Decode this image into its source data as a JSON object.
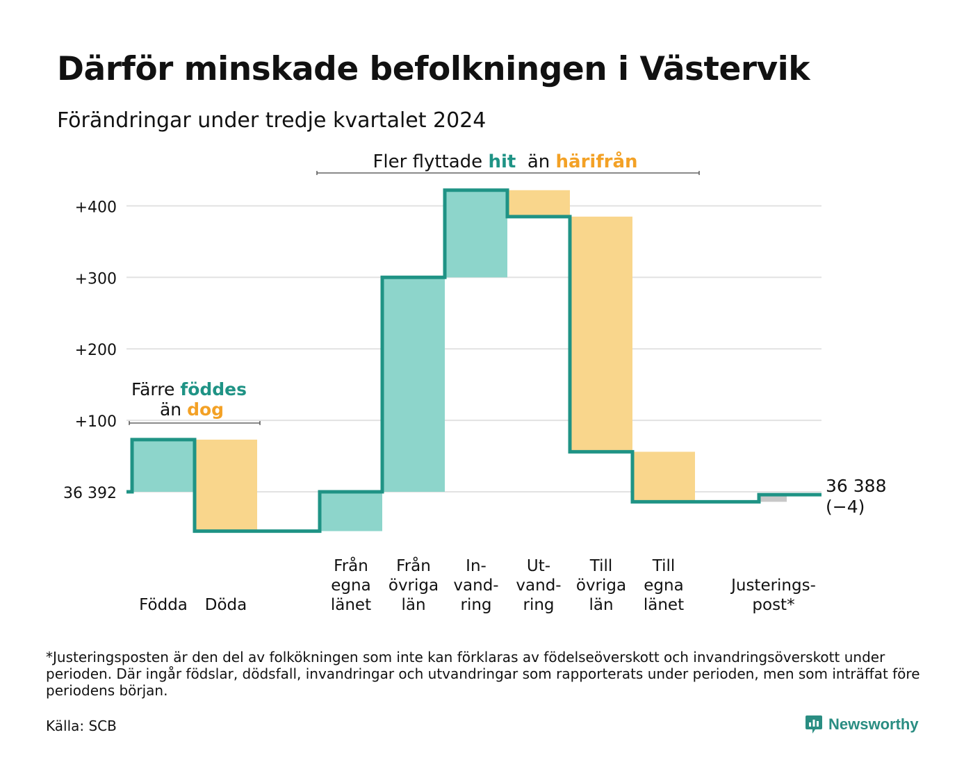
{
  "title": "Därför minskade befolkningen i Västervik",
  "subtitle": "Förändringar under tredje kvartalet 2024",
  "footnote": "*Justeringsposten är den del av folkökningen som inte kan förklaras av födelseöverskott och invandringsöverskott under perioden. Där ingår födslar, dödsfall, invandringar och utvandringar som rapporterats under perioden, men som inträffat före periodens början.",
  "source": "Källa: SCB",
  "brand": "Newsworthy",
  "colors": {
    "teal_line": "#1f9385",
    "teal_fill": "#8dd5cb",
    "orange_fill": "#f9d68c",
    "orange_text": "#f3a125",
    "gray_fill": "#c8c8c8",
    "grid": "#e2e2e2"
  },
  "chart_data": {
    "type": "waterfall",
    "start_label": "36 392",
    "end_label_value": "36 388",
    "end_label_change": "(−4)",
    "yticks": [
      "+100",
      "+200",
      "+300",
      "+400"
    ],
    "ylim": [
      -90,
      450
    ],
    "steps": [
      {
        "label": [
          "Födda"
        ],
        "value": 73,
        "kind": "in"
      },
      {
        "label": [
          "Döda"
        ],
        "value": -128,
        "kind": "out"
      },
      {
        "label": [
          "Från",
          "egna",
          "länet"
        ],
        "value": 55,
        "kind": "in"
      },
      {
        "label": [
          "Från",
          "övriga",
          "län"
        ],
        "value": 300,
        "kind": "in"
      },
      {
        "label": [
          "In-",
          "vand-",
          "ring"
        ],
        "value": 122,
        "kind": "in"
      },
      {
        "label": [
          "Ut-",
          "vand-",
          "ring"
        ],
        "value": -37,
        "kind": "out"
      },
      {
        "label": [
          "Till",
          "övriga",
          "län"
        ],
        "value": -329,
        "kind": "out"
      },
      {
        "label": [
          "Till",
          "egna",
          "länet"
        ],
        "value": -70,
        "kind": "out"
      },
      {
        "label": [
          "Justerings-",
          "post*"
        ],
        "value": 10,
        "kind": "adjust"
      }
    ],
    "annotations": {
      "births": {
        "line1": "Färre ",
        "line1_hl": "föddes",
        "line2": "än ",
        "line2_hl": "dog"
      },
      "migration": {
        "pre": "Fler flyttade ",
        "hl1": "hit",
        "mid": "  än ",
        "hl2": "härifrån"
      }
    }
  }
}
